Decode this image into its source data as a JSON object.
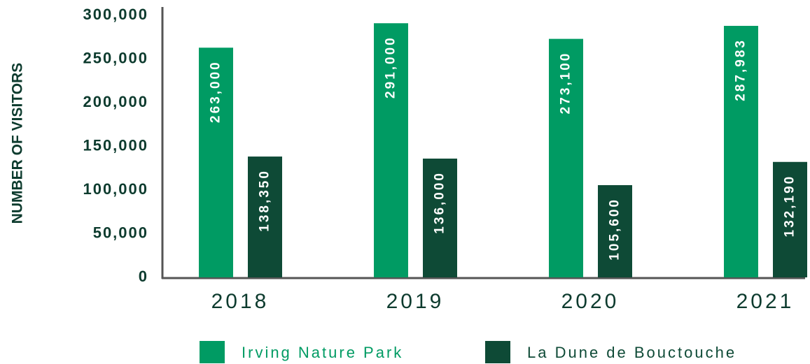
{
  "chart_data": {
    "type": "bar",
    "y_label": "NUMBER OF VISITORS",
    "categories": [
      "2018",
      "2019",
      "2020",
      "2021"
    ],
    "series": [
      {
        "name": "Irving Nature Park",
        "color": "#009b63",
        "values": [
          263000,
          291000,
          273100,
          287983
        ],
        "value_labels": [
          "263,000",
          "291,000",
          "273,100",
          "287,983"
        ]
      },
      {
        "name": "La Dune de Bouctouche",
        "color": "#0e4a36",
        "values": [
          138350,
          136000,
          105600,
          132190
        ],
        "value_labels": [
          "138,350",
          "136,000",
          "105,600",
          "132,190"
        ]
      }
    ],
    "ylim": [
      0,
      300000
    ],
    "yticks": [
      0,
      {
        "value": 50000,
        "label": "50,000"
      },
      {
        "value": 100000,
        "label": "100,000"
      },
      {
        "value": 150000,
        "label": "150,000"
      },
      {
        "value": 200000,
        "label": "200,000"
      },
      {
        "value": 250000,
        "label": "250,000"
      },
      {
        "value": 300000,
        "label": "300,000"
      }
    ],
    "grid": false,
    "legend": "bottom"
  }
}
